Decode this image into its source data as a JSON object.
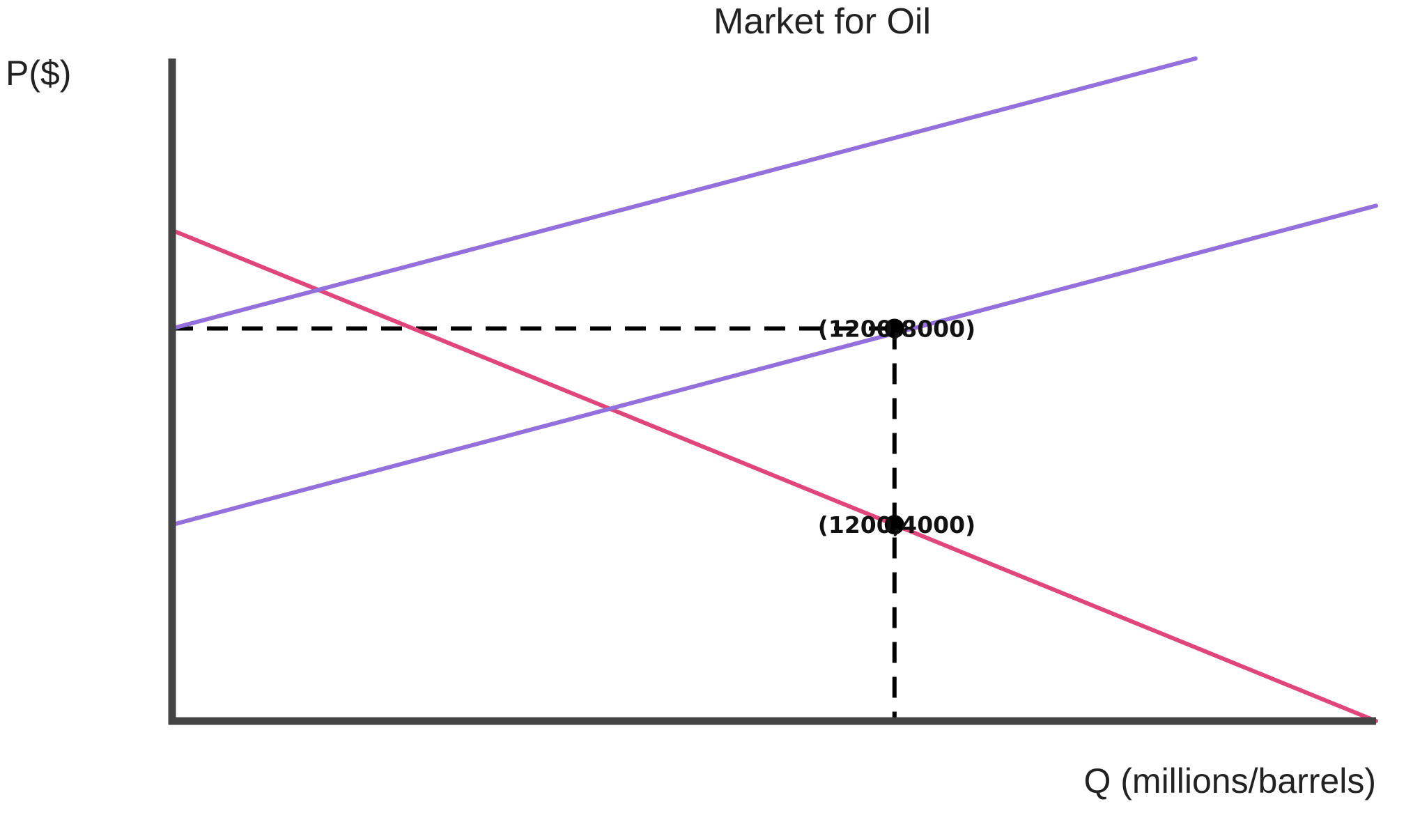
{
  "chart_data": {
    "type": "line",
    "title": "Market for Oil",
    "xlabel": "Q (millions/barrels)",
    "ylabel": "P($)",
    "xlim": [
      0,
      2000
    ],
    "ylim": [
      0,
      13500
    ],
    "grid": false,
    "legend": "none",
    "series": [
      {
        "kind": "demand",
        "color": "#e0457b",
        "x": [
          0,
          2000
        ],
        "y": [
          10000,
          0
        ]
      },
      {
        "kind": "supply",
        "color": "#9370db",
        "x": [
          0,
          2000
        ],
        "y": [
          4000,
          10500
        ]
      },
      {
        "kind": "supply",
        "color": "#9370db",
        "x": [
          0,
          1700
        ],
        "y": [
          8000,
          13500
        ]
      }
    ],
    "points": [
      {
        "x": 1200,
        "y": 8000,
        "label": "(1200,8000)"
      },
      {
        "x": 1200,
        "y": 4000,
        "label": "(1200,4000)"
      }
    ],
    "guides": [
      {
        "from": [
          0,
          8000
        ],
        "to": [
          1200,
          8000
        ]
      },
      {
        "from": [
          1200,
          8000
        ],
        "to": [
          1200,
          0
        ]
      },
      {
        "from": [
          0,
          0
        ],
        "to": [
          1200,
          0
        ]
      }
    ],
    "colors": {
      "axis": "#444444",
      "guide": "#000000",
      "point": "#000000"
    }
  }
}
